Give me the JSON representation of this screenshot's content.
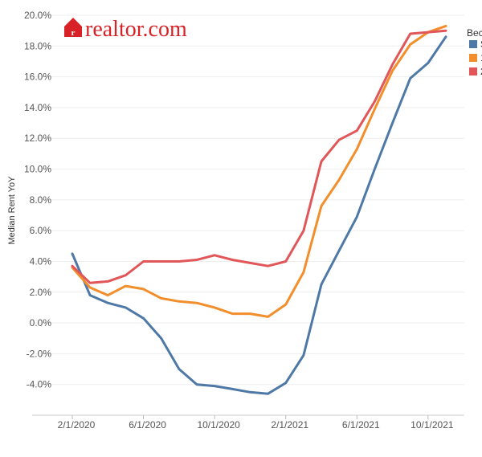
{
  "brand": {
    "name": "realtor.com"
  },
  "chart_data": {
    "type": "line",
    "ylabel": "Median Rent YoY",
    "ylim": [
      -6,
      20
    ],
    "y_ticks": [
      -4,
      -2,
      0,
      2,
      4,
      6,
      8,
      10,
      12,
      14,
      16,
      18,
      20
    ],
    "y_tick_labels": [
      "-4.0%",
      "-2.0%",
      "0.0%",
      "2.0%",
      "4.0%",
      "6.0%",
      "8.0%",
      "10.0%",
      "12.0%",
      "14.0%",
      "16.0%",
      "18.0%",
      "20.0%"
    ],
    "x": [
      "2020-02-01",
      "2020-03-01",
      "2020-04-01",
      "2020-05-01",
      "2020-06-01",
      "2020-07-01",
      "2020-08-01",
      "2020-09-01",
      "2020-10-01",
      "2020-11-01",
      "2020-12-01",
      "2021-01-01",
      "2021-02-01",
      "2021-03-01",
      "2021-04-01",
      "2021-05-01",
      "2021-06-01",
      "2021-07-01",
      "2021-08-01",
      "2021-09-01",
      "2021-10-01",
      "2021-11-01",
      "2021-12-01"
    ],
    "x_ticks": [
      "2020-02-01",
      "2020-06-01",
      "2020-10-01",
      "2021-02-01",
      "2021-06-01",
      "2021-10-01"
    ],
    "x_tick_labels": [
      "2/1/2020",
      "6/1/2020",
      "10/1/2020",
      "2/1/2021",
      "6/1/2021",
      "10/1/2021"
    ],
    "legend": {
      "title": "Bec",
      "placement": "right"
    },
    "grid": {
      "horizontal": true,
      "vertical": false
    },
    "series": [
      {
        "name": "S",
        "color": "#4e79a7",
        "values": [
          4.5,
          1.8,
          1.3,
          1.0,
          0.3,
          -1.0,
          -3.0,
          -4.0,
          -4.1,
          -4.3,
          -4.5,
          -4.6,
          -3.9,
          -2.1,
          2.5,
          4.7,
          6.9,
          10.0,
          13.0,
          15.9,
          16.9,
          18.6,
          null
        ]
      },
      {
        "name": "1",
        "color": "#f28e2b",
        "values": [
          3.6,
          2.3,
          1.8,
          2.4,
          2.2,
          1.6,
          1.4,
          1.3,
          1.0,
          0.6,
          0.6,
          0.4,
          1.2,
          3.3,
          7.6,
          9.3,
          11.3,
          13.9,
          16.4,
          18.1,
          18.9,
          19.3,
          null
        ]
      },
      {
        "name": "2",
        "color": "#e15759",
        "values": [
          3.7,
          2.6,
          2.7,
          3.1,
          4.0,
          4.0,
          4.0,
          4.1,
          4.4,
          4.1,
          3.9,
          3.7,
          4.0,
          6.0,
          10.5,
          11.9,
          12.5,
          14.4,
          16.8,
          18.8,
          18.9,
          19.0,
          null
        ]
      }
    ]
  }
}
